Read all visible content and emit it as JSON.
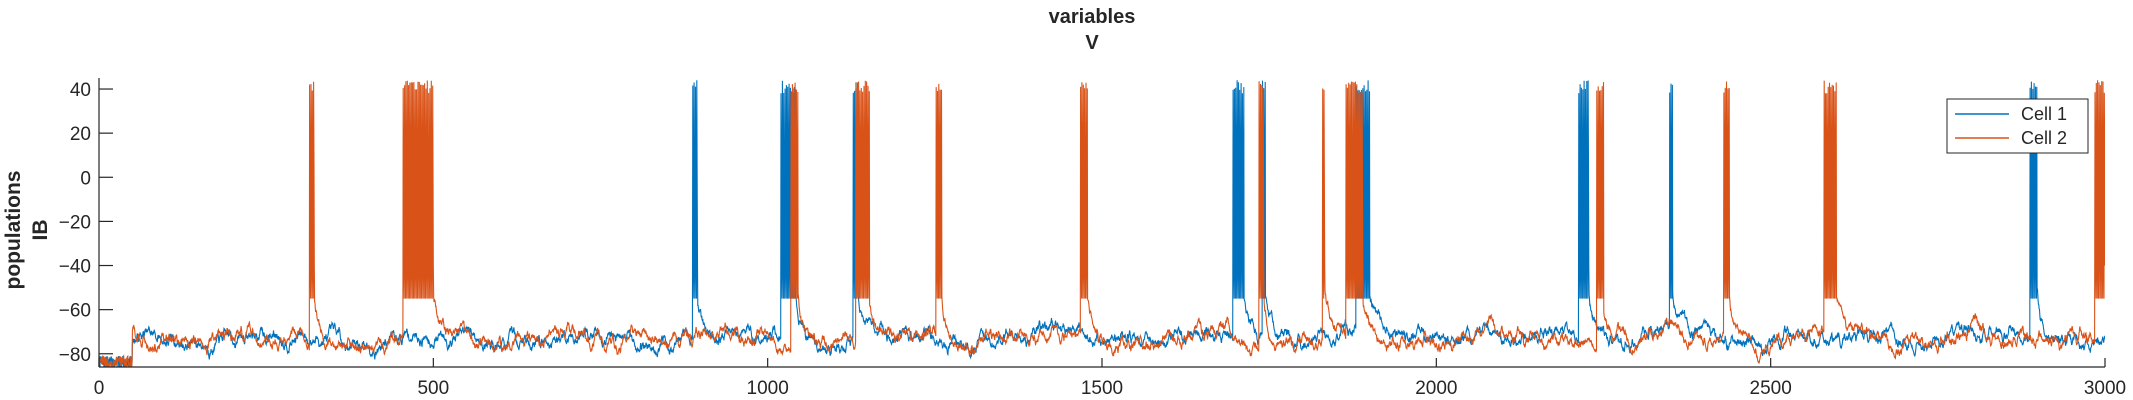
{
  "chart_data": {
    "type": "line",
    "title": [
      "variables",
      "V"
    ],
    "ylabel": [
      "populations",
      "IB"
    ],
    "xlabel": "",
    "xlim": [
      0,
      3000
    ],
    "ylim": [
      -86,
      45
    ],
    "xticks": [
      0,
      500,
      1000,
      1500,
      2000,
      2500,
      3000
    ],
    "yticks": [
      -80,
      -60,
      -40,
      -20,
      0,
      20,
      40
    ],
    "ytick_labels": [
      "−80",
      "−60",
      "−40",
      "−20",
      "0",
      "20",
      "40"
    ],
    "grid": false,
    "legend": {
      "location": "top-right",
      "entries": [
        "Cell 1",
        "Cell 2"
      ]
    },
    "baseline": {
      "start": 50,
      "rest": -73,
      "pre_start": -84
    },
    "series": [
      {
        "name": "Cell 1",
        "color": "#0072BD",
        "burst_windows": [
          [
            888,
            895
          ],
          [
            1020,
            1042
          ],
          [
            1128,
            1135
          ],
          [
            1696,
            1712
          ],
          [
            1740,
            1744
          ],
          [
            1880,
            1900
          ],
          [
            2213,
            2228
          ],
          [
            2349,
            2353
          ],
          [
            2888,
            2898
          ]
        ]
      },
      {
        "name": "Cell 2",
        "color": "#D95319",
        "burst_windows": [
          [
            315,
            322
          ],
          [
            455,
            500
          ],
          [
            1035,
            1045
          ],
          [
            1132,
            1152
          ],
          [
            1252,
            1260
          ],
          [
            1468,
            1478
          ],
          [
            1735,
            1742
          ],
          [
            1830,
            1833
          ],
          [
            1865,
            1890
          ],
          [
            2240,
            2250
          ],
          [
            2430,
            2438
          ],
          [
            2580,
            2598
          ],
          [
            2985,
            3000
          ]
        ]
      }
    ]
  }
}
